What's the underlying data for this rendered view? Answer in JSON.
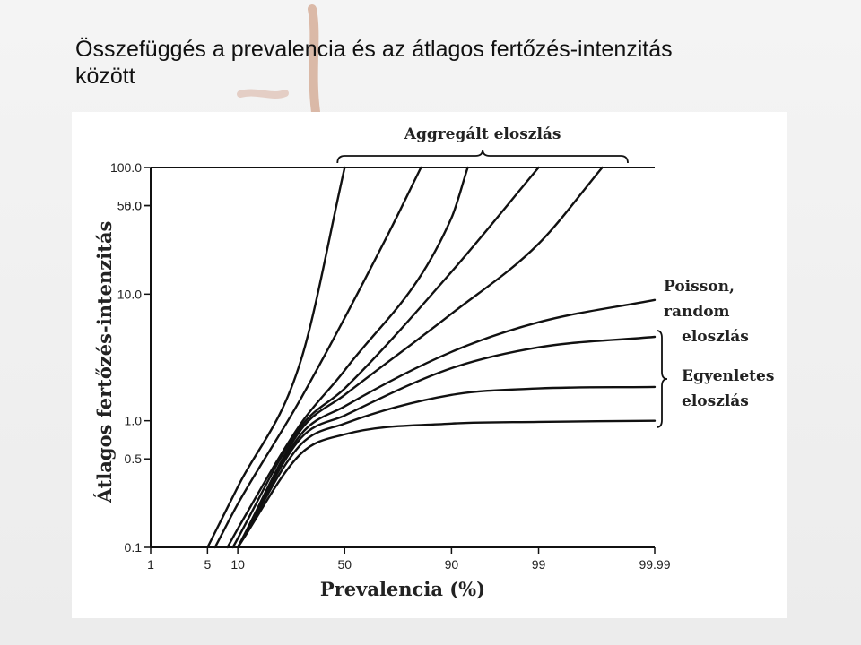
{
  "slide": {
    "title_line1": "Összefüggés a prevalencia és az átlagos fertőzés-intenzitás",
    "title_line2": "között"
  },
  "colors": {
    "curve": "#111111",
    "background": "#efefef",
    "figure": "#ffffff"
  },
  "chart_data": {
    "type": "line",
    "xlabel": "Prevalencia (%)",
    "ylabel": "Átlagos fertőzés-intenzitás",
    "x_scale": "probability",
    "y_scale": "log",
    "xlim": [
      1,
      99.99
    ],
    "ylim": [
      0.1,
      100.0
    ],
    "x_ticks": [
      "1",
      "5",
      "10",
      "50",
      "90",
      "99",
      "99.99"
    ],
    "y_ticks": [
      "0.1",
      "0.5",
      "1.0",
      "5 0",
      "10.0",
      "50.0",
      "100.0"
    ],
    "grid": false,
    "annotations": {
      "aggregated": "Aggregált eloszlás",
      "poisson": [
        "Poisson,",
        "random",
        "eloszlás"
      ],
      "uniform": [
        "Egyenletes",
        "eloszlás"
      ]
    },
    "series": [
      {
        "values": [
          [
            5,
            0.1
          ],
          [
            10,
            0.3
          ],
          [
            30,
            3
          ],
          [
            50,
            100
          ]
        ]
      },
      {
        "values": [
          [
            6,
            0.1
          ],
          [
            10,
            0.22
          ],
          [
            30,
            1.5
          ],
          [
            70,
            30
          ],
          [
            82,
            100
          ]
        ]
      },
      {
        "values": [
          [
            8,
            0.1
          ],
          [
            10,
            0.14
          ],
          [
            30,
            0.95
          ],
          [
            50,
            2.5
          ],
          [
            90,
            40
          ],
          [
            93,
            100
          ]
        ]
      },
      {
        "values": [
          [
            9,
            0.1
          ],
          [
            30,
            0.9
          ],
          [
            50,
            1.8
          ],
          [
            90,
            15
          ],
          [
            99,
            100
          ]
        ]
      },
      {
        "values": [
          [
            10,
            0.1
          ],
          [
            30,
            0.85
          ],
          [
            50,
            1.6
          ],
          [
            90,
            7
          ],
          [
            99,
            25
          ],
          [
            99.9,
            100
          ]
        ]
      },
      {
        "values": [
          [
            10,
            0.1
          ],
          [
            30,
            0.78
          ],
          [
            50,
            1.3
          ],
          [
            90,
            3.5
          ],
          [
            99,
            6
          ],
          [
            99.99,
            9
          ]
        ]
      },
      {
        "values": [
          [
            10,
            0.1
          ],
          [
            30,
            0.73
          ],
          [
            50,
            1.1
          ],
          [
            90,
            2.6
          ],
          [
            99,
            3.8
          ],
          [
            99.99,
            4.6
          ]
        ]
      },
      {
        "values": [
          [
            10,
            0.1
          ],
          [
            30,
            0.65
          ],
          [
            50,
            0.95
          ],
          [
            90,
            1.6
          ],
          [
            99,
            1.8
          ],
          [
            99.99,
            1.85
          ]
        ]
      },
      {
        "values": [
          [
            10,
            0.1
          ],
          [
            30,
            0.55
          ],
          [
            50,
            0.78
          ],
          [
            90,
            0.95
          ],
          [
            99,
            0.98
          ],
          [
            99.99,
            1.0
          ]
        ]
      }
    ]
  }
}
